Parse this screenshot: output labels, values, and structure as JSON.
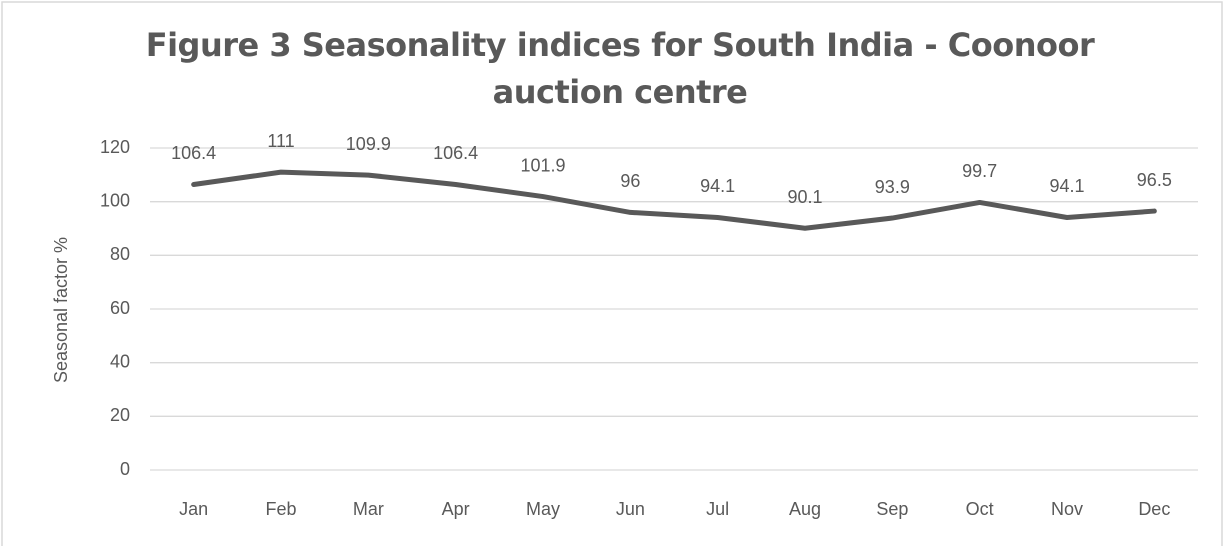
{
  "chart_data": {
    "type": "line",
    "title": "Figure 3 Seasonality indices for South India - Coonoor auction centre",
    "y_label": "Seasonal factor %",
    "categories": [
      "Jan",
      "Feb",
      "Mar",
      "Apr",
      "May",
      "Jun",
      "Jul",
      "Aug",
      "Sep",
      "Oct",
      "Nov",
      "Dec"
    ],
    "values": [
      106.4,
      111,
      109.9,
      106.4,
      101.9,
      96,
      94.1,
      90.1,
      93.9,
      99.7,
      94.1,
      96.5
    ],
    "color": "#595959",
    "ylim": [
      0,
      120
    ],
    "yticks": [
      0,
      20,
      40,
      60,
      80,
      100,
      120
    ],
    "grid": true
  }
}
